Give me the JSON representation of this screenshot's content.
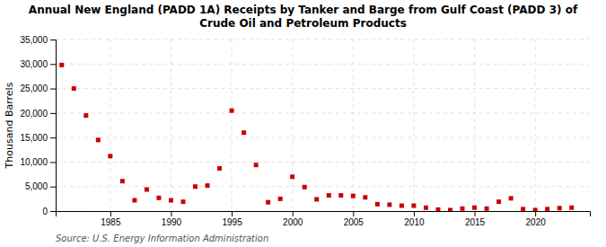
{
  "chart_data": {
    "type": "scatter",
    "title": "Annual New England (PADD 1A) Receipts by Tanker and Barge from Gulf Coast (PADD 3) of\nCrude Oil and Petroleum Products",
    "ylabel": "Thousand Barrels",
    "source": "Source: U.S. Energy Information Administration",
    "color": "#cc0000",
    "marker": "square",
    "grid": true,
    "x": [
      1981,
      1982,
      1983,
      1984,
      1985,
      1986,
      1987,
      1988,
      1989,
      1990,
      1991,
      1992,
      1993,
      1994,
      1995,
      1996,
      1997,
      1998,
      1999,
      2000,
      2001,
      2002,
      2003,
      2004,
      2005,
      2006,
      2007,
      2008,
      2009,
      2010,
      2011,
      2012,
      2013,
      2014,
      2015,
      2016,
      2017,
      2018,
      2019,
      2020,
      2021,
      2022,
      2023
    ],
    "values": [
      29800,
      25000,
      19500,
      14500,
      11200,
      6100,
      2200,
      4400,
      2700,
      2200,
      1900,
      5000,
      5200,
      8700,
      20500,
      16000,
      9400,
      1800,
      2500,
      7000,
      4900,
      2400,
      3200,
      3200,
      3100,
      2800,
      1400,
      1300,
      1100,
      1100,
      700,
      300,
      200,
      500,
      700,
      500,
      1900,
      2600,
      400,
      200,
      400,
      600,
      700
    ],
    "xlim": [
      1980.5,
      2024.5
    ],
    "xticks": [
      1985,
      1990,
      1995,
      2000,
      2005,
      2010,
      2015,
      2020
    ],
    "ylim": [
      0,
      35000
    ],
    "yticks": [
      0,
      {
        "value": 5000,
        "label": "5,000"
      },
      {
        "value": 10000,
        "label": "10,000"
      },
      {
        "value": 15000,
        "label": "15,000"
      },
      {
        "value": 20000,
        "label": "20,000"
      },
      {
        "value": 25000,
        "label": "25,000"
      },
      {
        "value": 30000,
        "label": "30,000"
      },
      {
        "value": 35000,
        "label": "35,000"
      }
    ]
  }
}
